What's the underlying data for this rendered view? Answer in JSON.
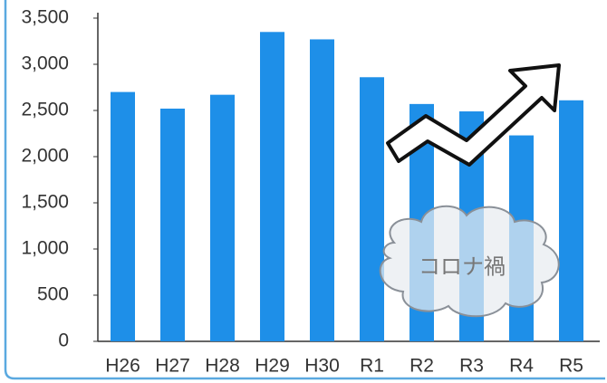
{
  "chart_data": {
    "type": "bar",
    "categories": [
      "H26",
      "H27",
      "H28",
      "H29",
      "H30",
      "R1",
      "R2",
      "R3",
      "R4",
      "R5"
    ],
    "values": [
      2700,
      2520,
      2670,
      3350,
      3270,
      2860,
      2570,
      2490,
      2230,
      2610
    ],
    "color": "#1e8fe8",
    "ylim": [
      0,
      3500
    ],
    "yticks": [
      0,
      500,
      {
        "value": 1000,
        "label": "1,000"
      },
      {
        "value": 1500,
        "label": "1,500"
      },
      {
        "value": 2000,
        "label": "2,000"
      },
      {
        "value": 2500,
        "label": "2,500"
      },
      {
        "value": 3000,
        "label": "3,000"
      },
      {
        "value": 3500,
        "label": "3,500"
      }
    ],
    "annotation": "コロナ禍"
  }
}
